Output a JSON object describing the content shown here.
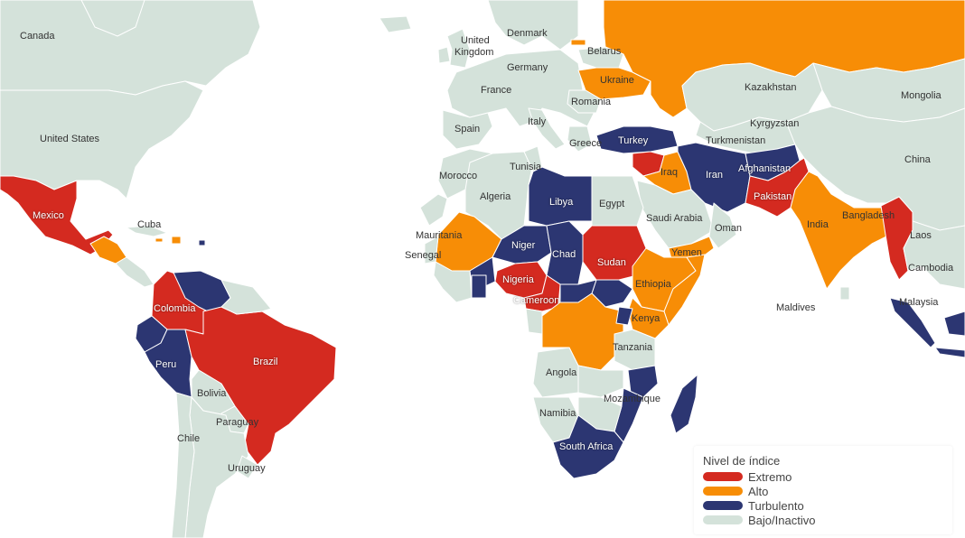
{
  "map": {
    "colors": {
      "ocean": "#ffffff",
      "extremo": "#d42a20",
      "alto": "#f78d06",
      "turbulento": "#2c3672",
      "bajo": "#d4e2da",
      "border": "#ffffff"
    },
    "labels": {
      "canada": "Canada",
      "united_states": "United States",
      "mexico": "Mexico",
      "cuba": "Cuba",
      "colombia": "Colombia",
      "peru": "Peru",
      "brazil": "Brazil",
      "bolivia": "Bolivia",
      "paraguay": "Paraguay",
      "chile": "Chile",
      "uruguay": "Uruguay",
      "united_kingdom_1": "United",
      "united_kingdom_2": "Kingdom",
      "denmark": "Denmark",
      "belarus": "Belarus",
      "germany": "Germany",
      "ukraine": "Ukraine",
      "france": "France",
      "romania": "Romania",
      "spain": "Spain",
      "italy": "Italy",
      "greece": "Greece",
      "turkey": "Turkey",
      "kazakhstan": "Kazakhstan",
      "mongolia": "Mongolia",
      "kyrgyzstan": "Kyrgyzstan",
      "turkmenistan": "Turkmenistan",
      "china": "China",
      "tunisia": "Tunisia",
      "morocco": "Morocco",
      "algeria": "Algeria",
      "libya": "Libya",
      "egypt": "Egypt",
      "iraq": "Iraq",
      "iran": "Iran",
      "afghanistan": "Afghanistan",
      "pakistan": "Pakistan",
      "india": "India",
      "bangladesh": "Bangladesh",
      "laos": "Laos",
      "cambodia": "Cambodia",
      "malaysia": "Malaysia",
      "maldives": "Maldives",
      "saudi_arabia": "Saudi Arabia",
      "oman": "Oman",
      "yemen": "Yemen",
      "mauritania": "Mauritania",
      "senegal": "Senegal",
      "niger": "Niger",
      "chad": "Chad",
      "sudan": "Sudan",
      "nigeria": "Nigeria",
      "cameroon": "Cameroon",
      "ethiopia": "Ethiopia",
      "kenya": "Kenya",
      "tanzania": "Tanzania",
      "angola": "Angola",
      "mozambique": "Mozambique",
      "namibia": "Namibia",
      "south_africa": "South Africa"
    }
  },
  "legend": {
    "title": "Nivel de índice",
    "items": [
      {
        "label": "Extremo",
        "color": "#d42a20"
      },
      {
        "label": "Alto",
        "color": "#f78d06"
      },
      {
        "label": "Turbulento",
        "color": "#2c3672"
      },
      {
        "label": "Bajo/Inactivo",
        "color": "#d4e2da"
      }
    ]
  }
}
